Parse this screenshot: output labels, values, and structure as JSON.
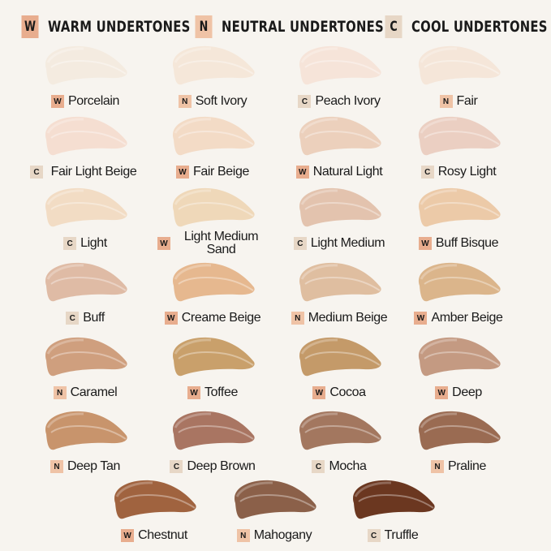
{
  "colors": {
    "background": "#f7f4ef",
    "W": "#e8ad8e",
    "N": "#efc3a6",
    "C": "#e7d7c6"
  },
  "legend": [
    {
      "code": "W",
      "label": "WARM UNDERTONES"
    },
    {
      "code": "N",
      "label": "NEUTRAL UNDERTONES"
    },
    {
      "code": "C",
      "label": "COOL UNDERTONES"
    }
  ],
  "shades": [
    {
      "code": "W",
      "name": "Porcelain",
      "color": "#f4ebe0"
    },
    {
      "code": "N",
      "name": "Soft Ivory",
      "color": "#f5e7d9"
    },
    {
      "code": "C",
      "name": "Peach Ivory",
      "color": "#f6e4d9"
    },
    {
      "code": "N",
      "name": "Fair",
      "color": "#f5e6d9"
    },
    {
      "code": "C",
      "name": "Fair Light Beige",
      "color": "#f5ded1"
    },
    {
      "code": "W",
      "name": "Fair Beige",
      "color": "#f3dbc6"
    },
    {
      "code": "W",
      "name": "Natural Light",
      "color": "#ecd0bc"
    },
    {
      "code": "C",
      "name": "Rosy Light",
      "color": "#ebcfc2"
    },
    {
      "code": "C",
      "name": "Light",
      "color": "#f2dcc4"
    },
    {
      "code": "W",
      "name": "Light Medium Sand",
      "color": "#efd8b9"
    },
    {
      "code": "C",
      "name": "Light Medium",
      "color": "#e3c3ae"
    },
    {
      "code": "W",
      "name": "Buff Bisque",
      "color": "#eccaa8"
    },
    {
      "code": "C",
      "name": "Buff",
      "color": "#dfbba5"
    },
    {
      "code": "W",
      "name": "Creame Beige",
      "color": "#e6b88f"
    },
    {
      "code": "N",
      "name": "Medium Beige",
      "color": "#dfbea0"
    },
    {
      "code": "W",
      "name": "Amber Beige",
      "color": "#dbb58b"
    },
    {
      "code": "N",
      "name": "Caramel",
      "color": "#cf9f7e"
    },
    {
      "code": "W",
      "name": "Toffee",
      "color": "#c9a06b"
    },
    {
      "code": "W",
      "name": "Cocoa",
      "color": "#c49a69"
    },
    {
      "code": "W",
      "name": "Deep",
      "color": "#c49a82"
    },
    {
      "code": "N",
      "name": "Deep Tan",
      "color": "#c8946c"
    },
    {
      "code": "C",
      "name": "Deep Brown",
      "color": "#a97562"
    },
    {
      "code": "C",
      "name": "Mocha",
      "color": "#a3775f"
    },
    {
      "code": "N",
      "name": "Praline",
      "color": "#9a6b52"
    },
    {
      "code": "W",
      "name": "Chestnut",
      "color": "#a0633f"
    },
    {
      "code": "N",
      "name": "Mahogany",
      "color": "#8b6049"
    },
    {
      "code": "C",
      "name": "Truffle",
      "color": "#6b3720"
    }
  ]
}
